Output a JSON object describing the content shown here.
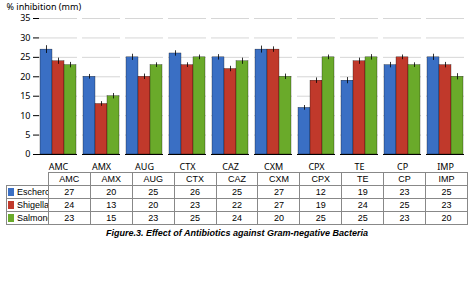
{
  "chart_data": {
    "type": "bar",
    "caption": "Figure.3. Effect of Antibiotics against Gram-negative Bacteria",
    "categories": [
      "AMC",
      "AMX",
      "AUG",
      "CTX",
      "CAZ",
      "CXM",
      "CPX",
      "TE",
      "CP",
      "IMP"
    ],
    "series": [
      {
        "name": "Escherchia coli",
        "color": "#3a6fc4",
        "values": [
          27,
          20,
          25,
          26,
          25,
          27,
          12,
          19,
          23,
          25
        ],
        "errors": [
          1.0,
          0.6,
          0.8,
          0.7,
          0.7,
          0.9,
          0.6,
          0.8,
          0.7,
          0.8
        ]
      },
      {
        "name": "Shigella spp",
        "color": "#c0392b",
        "values": [
          24,
          13,
          20,
          23,
          22,
          27,
          19,
          24,
          25,
          23
        ],
        "errors": [
          0.8,
          0.6,
          0.7,
          0.6,
          0.7,
          0.7,
          0.7,
          0.8,
          0.6,
          0.7
        ]
      },
      {
        "name": "Salmonella spp",
        "color": "#6aaa2a",
        "values": [
          23,
          15,
          23,
          25,
          24,
          20,
          25,
          25,
          23,
          20
        ],
        "errors": [
          0.7,
          0.7,
          0.6,
          0.6,
          0.8,
          0.7,
          0.6,
          0.7,
          0.6,
          0.8
        ]
      }
    ],
    "ylabel": "% inhibition (mm)",
    "ylim": [
      0,
      35
    ],
    "yticks": [
      0,
      5,
      10,
      15,
      20,
      25,
      30,
      35
    ],
    "grid": true
  }
}
